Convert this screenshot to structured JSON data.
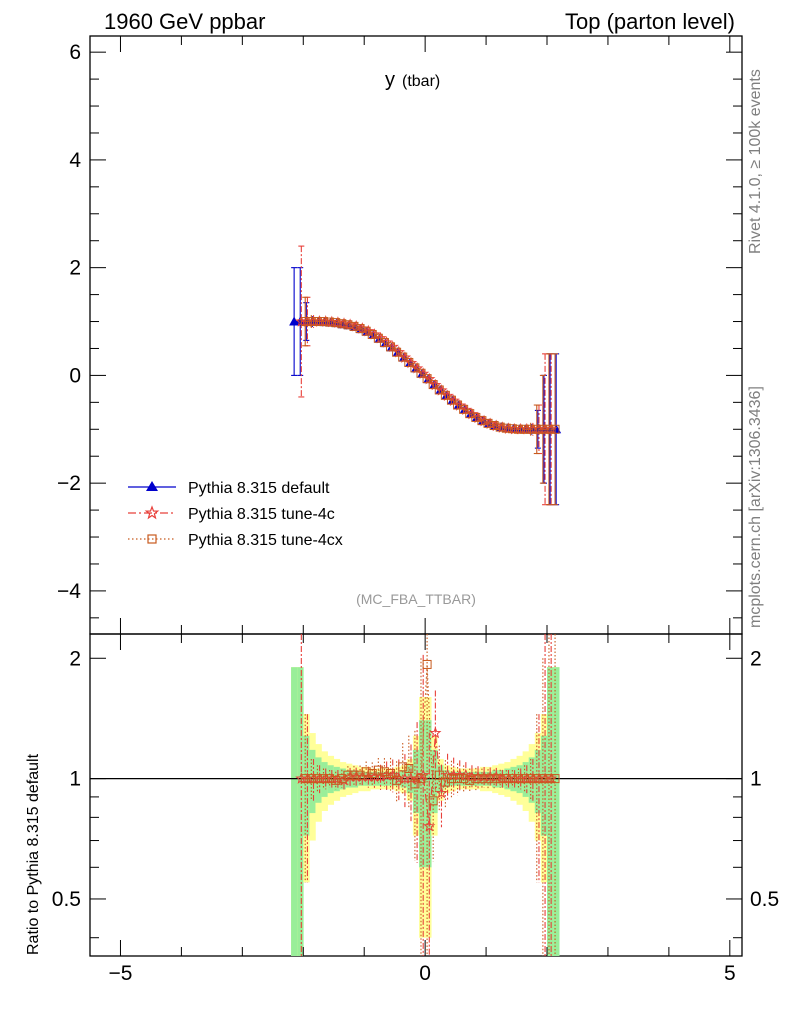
{
  "chart_data": {
    "type": "line",
    "header_left": "1960 GeV ppbar",
    "header_right": "Top (parton level)",
    "title_main": "y",
    "title_sub": "(tbar)",
    "watermark": "(MC_FBA_TTBAR)",
    "side_label_top": "Rivet 4.1.0, ≥ 100k events",
    "side_label_bottom": "mcplots.cern.ch [arXiv:1306.3436]",
    "ratio_ylabel": "Ratio to Pythia 8.315 default",
    "main_xlim": [
      -5.5,
      5.2
    ],
    "main_ylim": [
      -4.8,
      6.3
    ],
    "main_yticks": [
      "6",
      "4",
      "2",
      "0",
      "−2",
      "−4"
    ],
    "ratio_ylim": [
      0.36,
      2.3
    ],
    "ratio_yticks": [
      "2",
      "1",
      "0.5"
    ],
    "xticks": [
      "−5",
      "0",
      "5"
    ],
    "bin_edges": [
      -2.2,
      -2.1,
      -2.0,
      -1.9,
      -1.8,
      -1.7,
      -1.6,
      -1.5,
      -1.4,
      -1.3,
      -1.2,
      -1.1,
      -1.0,
      -0.9,
      -0.8,
      -0.7,
      -0.6,
      -0.5,
      -0.4,
      -0.3,
      -0.2,
      -0.1,
      0.0,
      0.1,
      0.2,
      0.3,
      0.4,
      0.5,
      0.6,
      0.7,
      0.8,
      0.9,
      1.0,
      1.1,
      1.2,
      1.3,
      1.4,
      1.5,
      1.6,
      1.7,
      1.8,
      1.9,
      2.0,
      2.1,
      2.2
    ],
    "series": [
      {
        "name": "Pythia 8.315 default",
        "color": "#0000cc",
        "marker": "triangle",
        "x": [
          -2.15,
          -2.05,
          -1.95,
          -1.85,
          -1.75,
          -1.65,
          -1.55,
          -1.45,
          -1.35,
          -1.25,
          -1.15,
          -1.05,
          -0.95,
          -0.85,
          -0.75,
          -0.65,
          -0.55,
          -0.45,
          -0.35,
          -0.25,
          -0.15,
          -0.05,
          0.05,
          0.15,
          0.25,
          0.35,
          0.45,
          0.55,
          0.65,
          0.75,
          0.85,
          0.95,
          1.05,
          1.15,
          1.25,
          1.35,
          1.45,
          1.55,
          1.65,
          1.75,
          1.85,
          1.95,
          2.05,
          2.15
        ],
        "y": [
          1.0,
          1.0,
          1.0,
          1.0,
          1.0,
          0.99,
          0.98,
          0.97,
          0.95,
          0.93,
          0.9,
          0.86,
          0.81,
          0.75,
          0.68,
          0.6,
          0.52,
          0.43,
          0.33,
          0.23,
          0.13,
          0.03,
          -0.07,
          -0.17,
          -0.27,
          -0.37,
          -0.46,
          -0.55,
          -0.63,
          -0.71,
          -0.78,
          -0.84,
          -0.89,
          -0.93,
          -0.96,
          -0.98,
          -0.99,
          -1.0,
          -1.0,
          -1.0,
          -1.0,
          -1.0,
          -1.0,
          -1.0
        ],
        "yerr": [
          1.0,
          1.0,
          0.35,
          0.1,
          0.08,
          0.06,
          0.05,
          0.05,
          0.05,
          0.05,
          0.05,
          0.05,
          0.05,
          0.05,
          0.05,
          0.05,
          0.05,
          0.05,
          0.05,
          0.05,
          0.05,
          0.05,
          0.05,
          0.05,
          0.05,
          0.05,
          0.05,
          0.05,
          0.05,
          0.05,
          0.05,
          0.05,
          0.05,
          0.05,
          0.05,
          0.05,
          0.05,
          0.06,
          0.08,
          0.1,
          0.35,
          1.0,
          1.4,
          1.4
        ]
      },
      {
        "name": "Pythia 8.315 tune-4c",
        "color": "#e8403a",
        "marker": "star",
        "x": [
          -2.05,
          -1.95,
          -1.85,
          -1.75,
          -1.65,
          -1.55,
          -1.45,
          -1.35,
          -1.25,
          -1.15,
          -1.05,
          -0.95,
          -0.85,
          -0.75,
          -0.65,
          -0.55,
          -0.45,
          -0.35,
          -0.25,
          -0.15,
          -0.05,
          0.05,
          0.15,
          0.25,
          0.35,
          0.45,
          0.55,
          0.65,
          0.75,
          0.85,
          0.95,
          1.05,
          1.15,
          1.25,
          1.35,
          1.45,
          1.55,
          1.65,
          1.75,
          1.85,
          1.95,
          2.05
        ],
        "y": [
          1.0,
          1.0,
          1.0,
          1.0,
          1.0,
          0.99,
          0.98,
          0.96,
          0.94,
          0.91,
          0.87,
          0.82,
          0.76,
          0.69,
          0.61,
          0.53,
          0.43,
          0.33,
          0.23,
          0.13,
          0.03,
          -0.07,
          -0.18,
          -0.28,
          -0.38,
          -0.47,
          -0.56,
          -0.64,
          -0.72,
          -0.79,
          -0.85,
          -0.9,
          -0.94,
          -0.97,
          -0.99,
          -1.0,
          -1.0,
          -1.0,
          -1.0,
          -1.0,
          -1.0,
          -1.0
        ],
        "yerr": [
          1.4,
          0.45,
          0.12,
          0.08,
          0.06,
          0.05,
          0.05,
          0.05,
          0.05,
          0.05,
          0.05,
          0.05,
          0.05,
          0.05,
          0.05,
          0.05,
          0.05,
          0.05,
          0.05,
          0.05,
          0.05,
          0.05,
          0.05,
          0.05,
          0.05,
          0.05,
          0.05,
          0.05,
          0.05,
          0.05,
          0.05,
          0.05,
          0.05,
          0.05,
          0.05,
          0.05,
          0.06,
          0.08,
          0.12,
          0.45,
          1.4,
          1.4
        ],
        "ratio": [
          1.0,
          1.0,
          1.0,
          1.0,
          1.0,
          1.0,
          1.0,
          0.99,
          1.01,
          1.01,
          1.01,
          1.01,
          1.01,
          1.01,
          1.02,
          1.02,
          1.0,
          1.0,
          1.0,
          1.0,
          1.02,
          0.76,
          1.3,
          0.92,
          1.02,
          1.02,
          1.02,
          1.02,
          1.01,
          1.01,
          1.01,
          1.01,
          1.01,
          1.0,
          1.0,
          1.0,
          1.0,
          1.0,
          1.0,
          1.0,
          1.0,
          1.0
        ]
      },
      {
        "name": "Pythia 8.315 tune-4cx",
        "color": "#c85a1e",
        "marker": "square",
        "x": [
          -1.95,
          -1.85,
          -1.75,
          -1.65,
          -1.55,
          -1.45,
          -1.35,
          -1.25,
          -1.15,
          -1.05,
          -0.95,
          -0.85,
          -0.75,
          -0.65,
          -0.55,
          -0.45,
          -0.35,
          -0.25,
          -0.15,
          -0.05,
          0.05,
          0.15,
          0.25,
          0.35,
          0.45,
          0.55,
          0.65,
          0.75,
          0.85,
          0.95,
          1.05,
          1.15,
          1.25,
          1.35,
          1.45,
          1.55,
          1.65,
          1.75,
          1.85,
          1.95,
          2.05,
          2.15
        ],
        "y": [
          1.0,
          1.0,
          1.0,
          1.0,
          0.99,
          0.98,
          0.96,
          0.94,
          0.91,
          0.87,
          0.82,
          0.76,
          0.69,
          0.61,
          0.53,
          0.43,
          0.34,
          0.24,
          0.14,
          0.04,
          -0.06,
          -0.17,
          -0.27,
          -0.37,
          -0.46,
          -0.55,
          -0.63,
          -0.71,
          -0.78,
          -0.84,
          -0.89,
          -0.93,
          -0.96,
          -0.98,
          -0.99,
          -1.0,
          -1.0,
          -1.0,
          -1.0,
          -1.0,
          -1.0,
          -1.0
        ],
        "yerr": [
          0.45,
          0.12,
          0.08,
          0.06,
          0.05,
          0.05,
          0.05,
          0.05,
          0.05,
          0.05,
          0.05,
          0.05,
          0.05,
          0.05,
          0.05,
          0.05,
          0.05,
          0.05,
          0.05,
          0.05,
          0.05,
          0.05,
          0.05,
          0.05,
          0.05,
          0.05,
          0.05,
          0.05,
          0.05,
          0.05,
          0.05,
          0.05,
          0.05,
          0.05,
          0.05,
          0.06,
          0.08,
          0.12,
          0.45,
          1.0,
          1.4,
          1.4
        ],
        "ratio": [
          1.0,
          1.0,
          1.0,
          1.0,
          1.0,
          0.99,
          1.0,
          1.02,
          1.02,
          1.02,
          1.04,
          1.03,
          1.05,
          1.04,
          1.03,
          0.99,
          1.07,
          1.06,
          0.97,
          1.0,
          1.93,
          0.88,
          1.02,
          0.98,
          1.0,
          1.0,
          1.0,
          0.99,
          1.0,
          1.0,
          1.0,
          1.0,
          1.0,
          1.0,
          1.0,
          1.0,
          1.0,
          1.0,
          1.0,
          1.0,
          1.0,
          1.0
        ]
      }
    ],
    "ratio_band_yellow_halfwidth": [
      0.9,
      0.9,
      0.45,
      0.3,
      0.22,
      0.17,
      0.14,
      0.12,
      0.1,
      0.09,
      0.08,
      0.07,
      0.07,
      0.06,
      0.06,
      0.06,
      0.06,
      0.07,
      0.08,
      0.12,
      0.28,
      0.6,
      0.6,
      0.28,
      0.12,
      0.08,
      0.07,
      0.06,
      0.06,
      0.06,
      0.06,
      0.07,
      0.07,
      0.08,
      0.09,
      0.1,
      0.12,
      0.14,
      0.17,
      0.22,
      0.3,
      0.45,
      0.9,
      0.9
    ],
    "ratio_band_green_halfwidth": [
      0.9,
      0.9,
      0.28,
      0.18,
      0.13,
      0.1,
      0.08,
      0.07,
      0.06,
      0.05,
      0.05,
      0.04,
      0.04,
      0.04,
      0.04,
      0.04,
      0.04,
      0.04,
      0.05,
      0.08,
      0.18,
      0.4,
      0.4,
      0.18,
      0.08,
      0.05,
      0.04,
      0.04,
      0.04,
      0.04,
      0.04,
      0.04,
      0.04,
      0.05,
      0.05,
      0.06,
      0.07,
      0.08,
      0.1,
      0.13,
      0.18,
      0.28,
      0.9,
      0.9
    ]
  }
}
